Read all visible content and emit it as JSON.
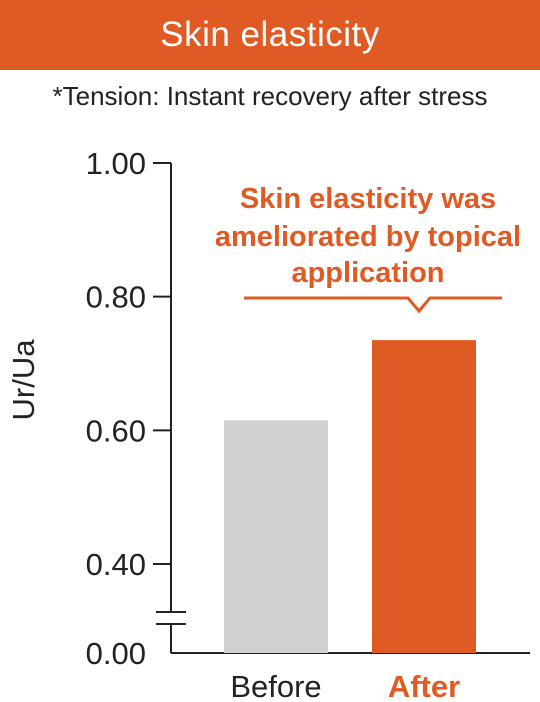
{
  "header": {
    "title": "Skin elasticity",
    "subtitle": "*Tension: Instant recovery after stress"
  },
  "colors": {
    "accent": "#E05A23",
    "before_bar": "#D0D0D0",
    "axis": "#222222",
    "text": "#222222"
  },
  "chart_data": {
    "type": "bar",
    "title": "Skin elasticity",
    "subtitle": "*Tension: Instant recovery after stress",
    "categories": [
      "Before",
      "After"
    ],
    "values": [
      0.615,
      0.735
    ],
    "ylabel": "Ur/Ua",
    "xlabel": "",
    "ylim": [
      0.0,
      1.0
    ],
    "axis_break": [
      0.0,
      0.4
    ],
    "yticks": [
      "1.00",
      "0.80",
      "0.60",
      "0.40",
      "0.00"
    ],
    "grid": false,
    "annotation": {
      "lines": [
        "Skin elasticity was",
        "ameliorated by topical",
        "application"
      ]
    }
  }
}
